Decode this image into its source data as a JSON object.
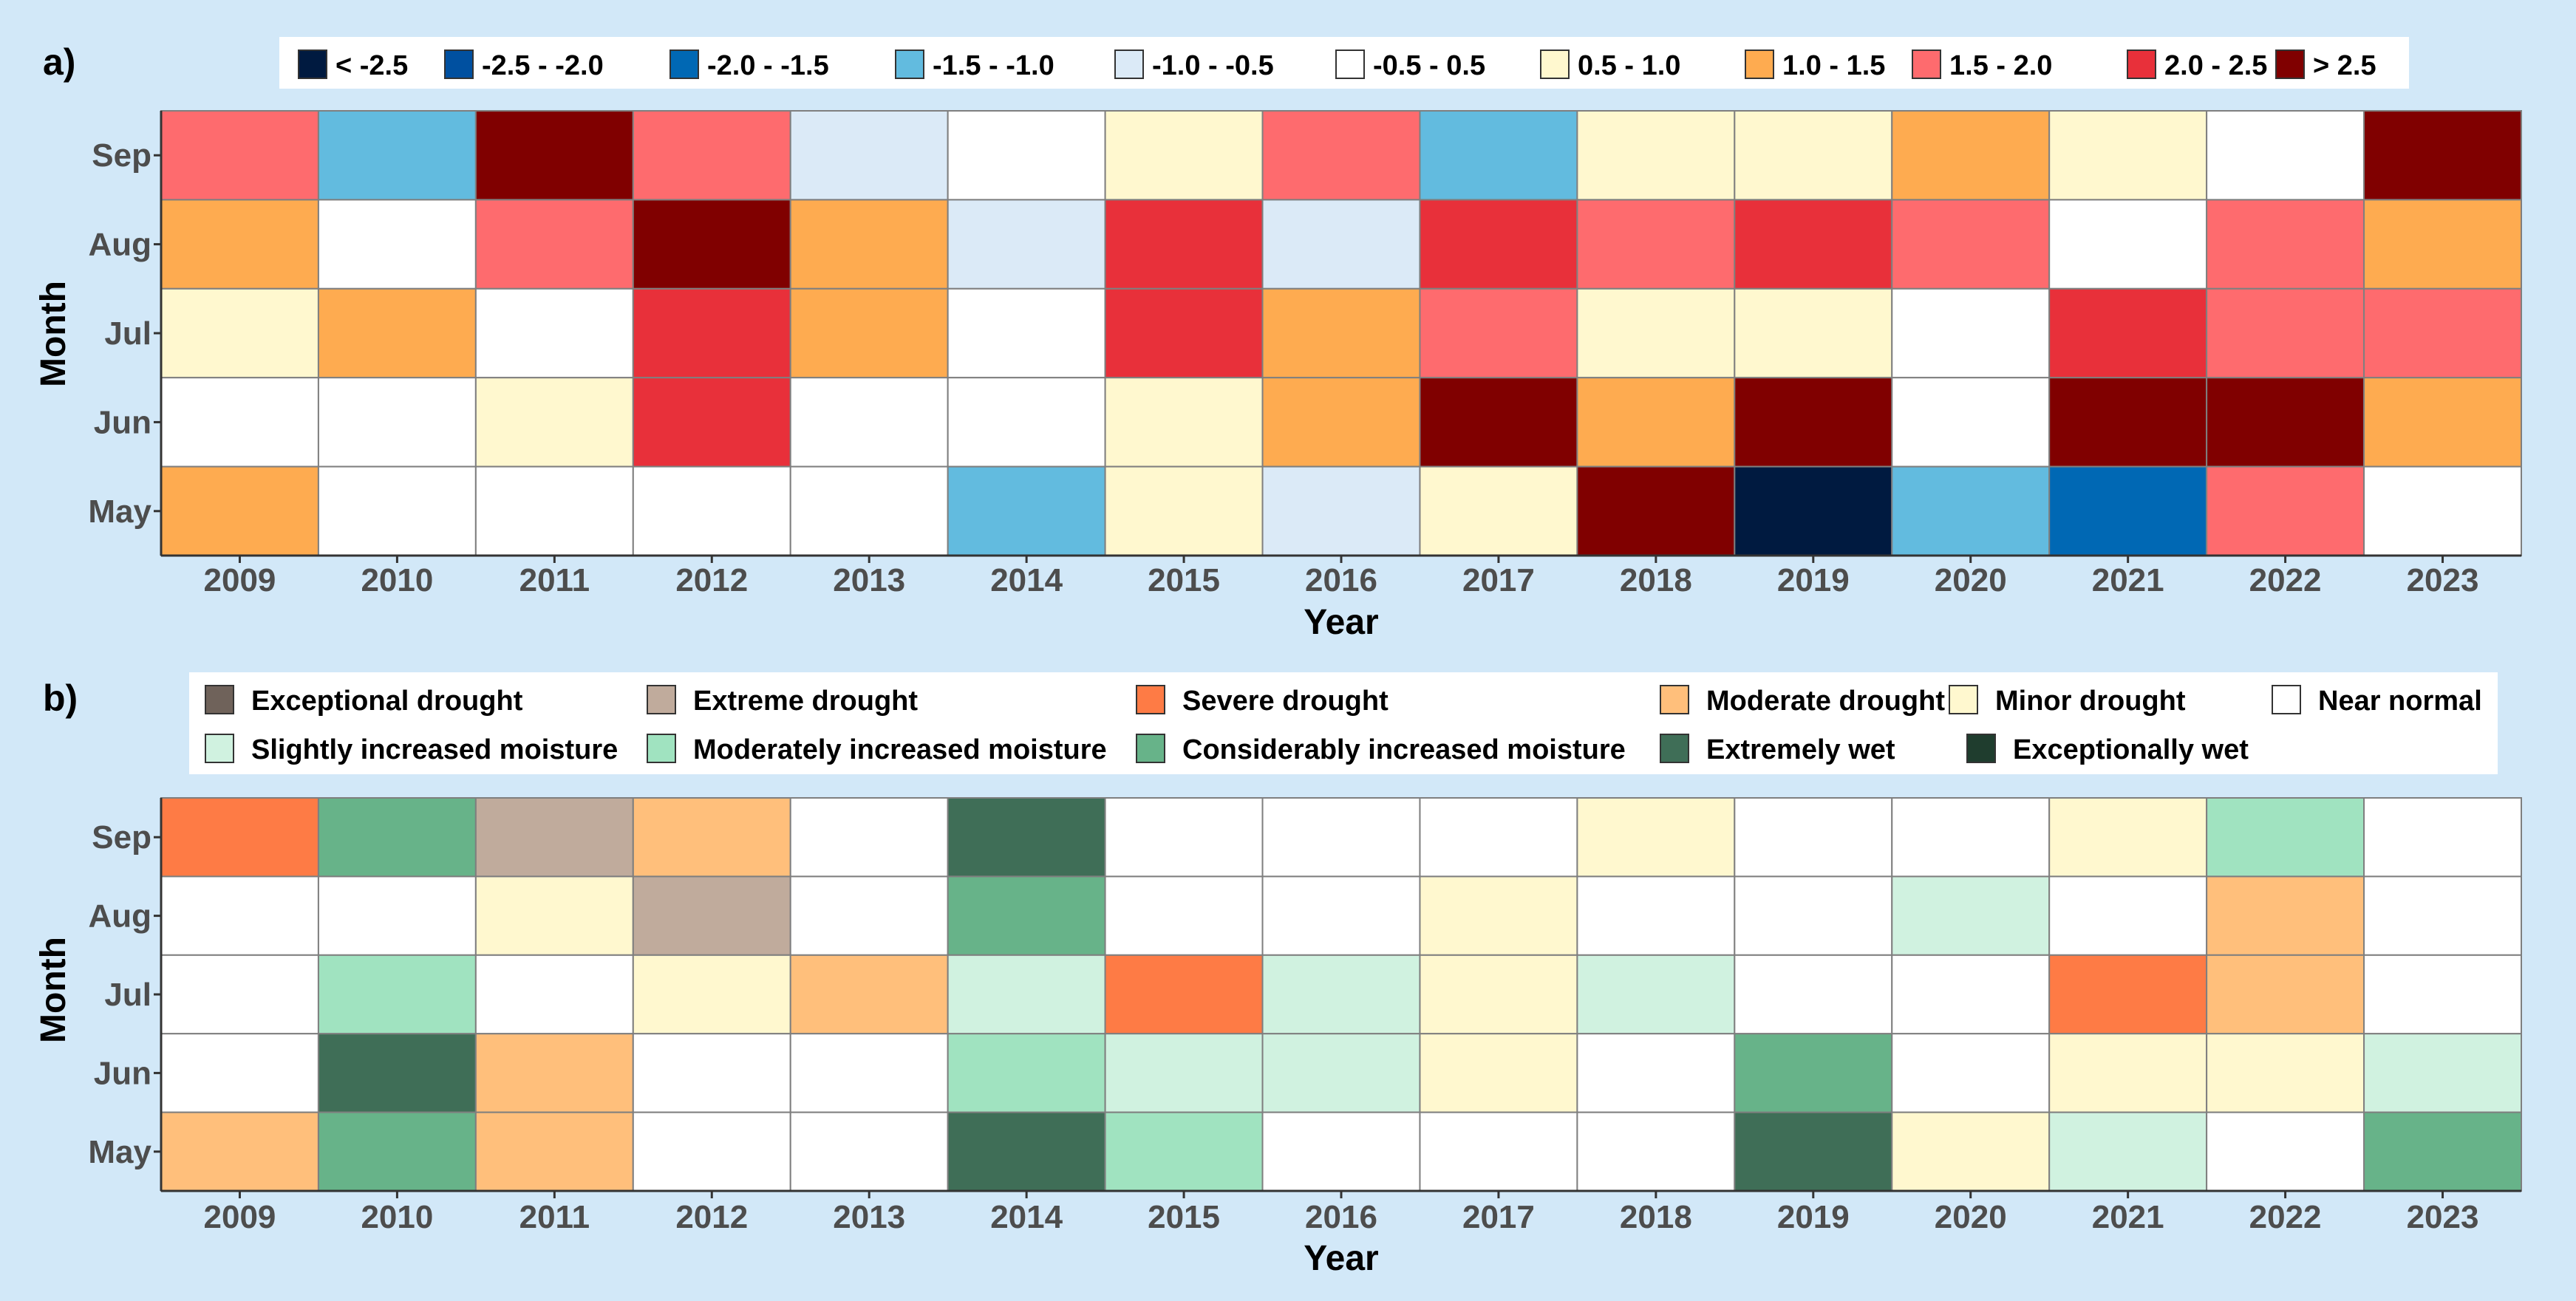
{
  "chart_data": [
    {
      "type": "heatmap",
      "panel_label": "a)",
      "xlabel": "Year",
      "ylabel": "Month",
      "x": [
        "2009",
        "2010",
        "2011",
        "2012",
        "2013",
        "2014",
        "2015",
        "2016",
        "2017",
        "2018",
        "2019",
        "2020",
        "2021",
        "2022",
        "2023"
      ],
      "y": [
        "Sep",
        "Aug",
        "Jul",
        "Jun",
        "May"
      ],
      "legend": [
        {
          "label": "< -2.5",
          "color": "#001a40"
        },
        {
          "label": "-2.5 - -2.0",
          "color": "#0050a0"
        },
        {
          "label": "-2.0 - -1.5",
          "color": "#0068b4"
        },
        {
          "label": "-1.5 - -1.0",
          "color": "#62bbdf"
        },
        {
          "label": "-1.0 - -0.5",
          "color": "#dbeaf7"
        },
        {
          "label": "-0.5 - 0.5",
          "color": "#ffffff"
        },
        {
          "label": "0.5 - 1.0",
          "color": "#fff8cf"
        },
        {
          "label": "1.0 - 1.5",
          "color": "#feab50"
        },
        {
          "label": "1.5 - 2.0",
          "color": "#fe6b6e"
        },
        {
          "label": "2.0 - 2.5",
          "color": "#e8303a"
        },
        {
          "label": "> 2.5",
          "color": "#800000"
        }
      ],
      "cells": [
        [
          8,
          3,
          10,
          8,
          4,
          5,
          6,
          8,
          3,
          6,
          6,
          7,
          6,
          5,
          10
        ],
        [
          7,
          5,
          8,
          10,
          7,
          4,
          9,
          4,
          9,
          8,
          9,
          8,
          5,
          8,
          7
        ],
        [
          6,
          7,
          5,
          9,
          7,
          5,
          9,
          7,
          8,
          6,
          6,
          5,
          9,
          8,
          8
        ],
        [
          5,
          5,
          6,
          9,
          5,
          5,
          6,
          7,
          10,
          7,
          10,
          5,
          10,
          10,
          7
        ],
        [
          7,
          5,
          5,
          5,
          5,
          3,
          6,
          4,
          6,
          10,
          0,
          3,
          2,
          8,
          5
        ]
      ]
    },
    {
      "type": "heatmap",
      "panel_label": "b)",
      "xlabel": "Year",
      "ylabel": "Month",
      "x": [
        "2009",
        "2010",
        "2011",
        "2012",
        "2013",
        "2014",
        "2015",
        "2016",
        "2017",
        "2018",
        "2019",
        "2020",
        "2021",
        "2022",
        "2023"
      ],
      "y": [
        "Sep",
        "Aug",
        "Jul",
        "Jun",
        "May"
      ],
      "legend": [
        {
          "label": "Exceptional drought",
          "color": "#6f625a"
        },
        {
          "label": "Extreme drought",
          "color": "#c0ab9c"
        },
        {
          "label": "Severe drought",
          "color": "#fe7b45"
        },
        {
          "label": "Moderate drought",
          "color": "#ffbf7b"
        },
        {
          "label": "Minor drought",
          "color": "#fff8cf"
        },
        {
          "label": "Near normal",
          "color": "#ffffff"
        },
        {
          "label": "Slightly increased moisture",
          "color": "#d0f2e0"
        },
        {
          "label": "Moderately increased moisture",
          "color": "#a0e3c0"
        },
        {
          "label": "Considerably increased moisture",
          "color": "#67b389"
        },
        {
          "label": "Extremely wet",
          "color": "#3f6e57"
        },
        {
          "label": "Exceptionally wet",
          "color": "#1f3d2e"
        }
      ],
      "cells": [
        [
          2,
          8,
          1,
          3,
          5,
          9,
          5,
          5,
          5,
          4,
          5,
          5,
          4,
          7,
          5
        ],
        [
          5,
          5,
          4,
          1,
          5,
          8,
          5,
          5,
          4,
          5,
          5,
          6,
          5,
          3,
          5
        ],
        [
          5,
          7,
          5,
          4,
          3,
          6,
          2,
          6,
          4,
          6,
          5,
          5,
          2,
          3,
          5
        ],
        [
          5,
          9,
          3,
          5,
          5,
          7,
          6,
          6,
          4,
          5,
          8,
          5,
          4,
          4,
          6
        ],
        [
          3,
          8,
          3,
          5,
          5,
          9,
          7,
          5,
          5,
          5,
          9,
          4,
          6,
          5,
          8
        ]
      ]
    }
  ]
}
